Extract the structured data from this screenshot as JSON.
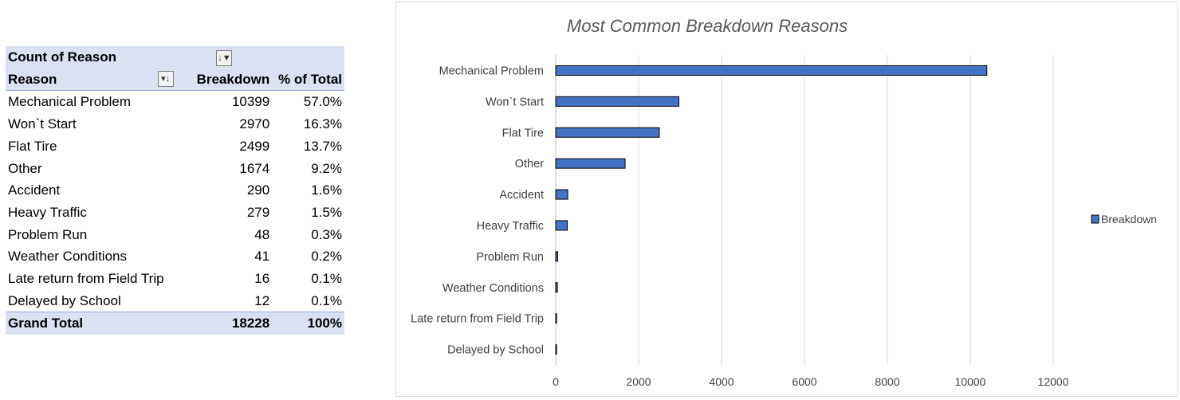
{
  "pivot": {
    "header_title": "Count of Reason",
    "col_reason": "Reason",
    "col_breakdown": "Breakdown",
    "col_pct": "% of Total",
    "rows": [
      {
        "reason": "Mechanical Problem",
        "count": "10399",
        "pct": "57.0%"
      },
      {
        "reason": "Won`t Start",
        "count": "2970",
        "pct": "16.3%"
      },
      {
        "reason": "Flat Tire",
        "count": "2499",
        "pct": "13.7%"
      },
      {
        "reason": "Other",
        "count": "1674",
        "pct": "9.2%"
      },
      {
        "reason": "Accident",
        "count": "290",
        "pct": "1.6%"
      },
      {
        "reason": "Heavy Traffic",
        "count": "279",
        "pct": "1.5%"
      },
      {
        "reason": "Problem Run",
        "count": "48",
        "pct": "0.3%"
      },
      {
        "reason": "Weather Conditions",
        "count": "41",
        "pct": "0.2%"
      },
      {
        "reason": "Late return from Field Trip",
        "count": "16",
        "pct": "0.1%"
      },
      {
        "reason": "Delayed by School",
        "count": "12",
        "pct": "0.1%"
      }
    ],
    "total_label": "Grand Total",
    "total_count": "18228",
    "total_pct": "100%"
  },
  "chart_data": {
    "type": "bar",
    "orientation": "horizontal",
    "title": "Most Common Breakdown Reasons",
    "categories": [
      "Mechanical Problem",
      "Won`t Start",
      "Flat Tire",
      "Other",
      "Accident",
      "Heavy Traffic",
      "Problem Run",
      "Weather Conditions",
      "Late return from Field Trip",
      "Delayed by School"
    ],
    "series": [
      {
        "name": "Breakdown",
        "values": [
          10399,
          2970,
          2499,
          1674,
          290,
          279,
          48,
          41,
          16,
          12
        ],
        "color": "#4472c4"
      }
    ],
    "xlim": [
      0,
      12000
    ],
    "xticks": [
      "0",
      "2000",
      "4000",
      "6000",
      "8000",
      "10000",
      "12000"
    ],
    "grid": "vertical",
    "legend": "right"
  }
}
